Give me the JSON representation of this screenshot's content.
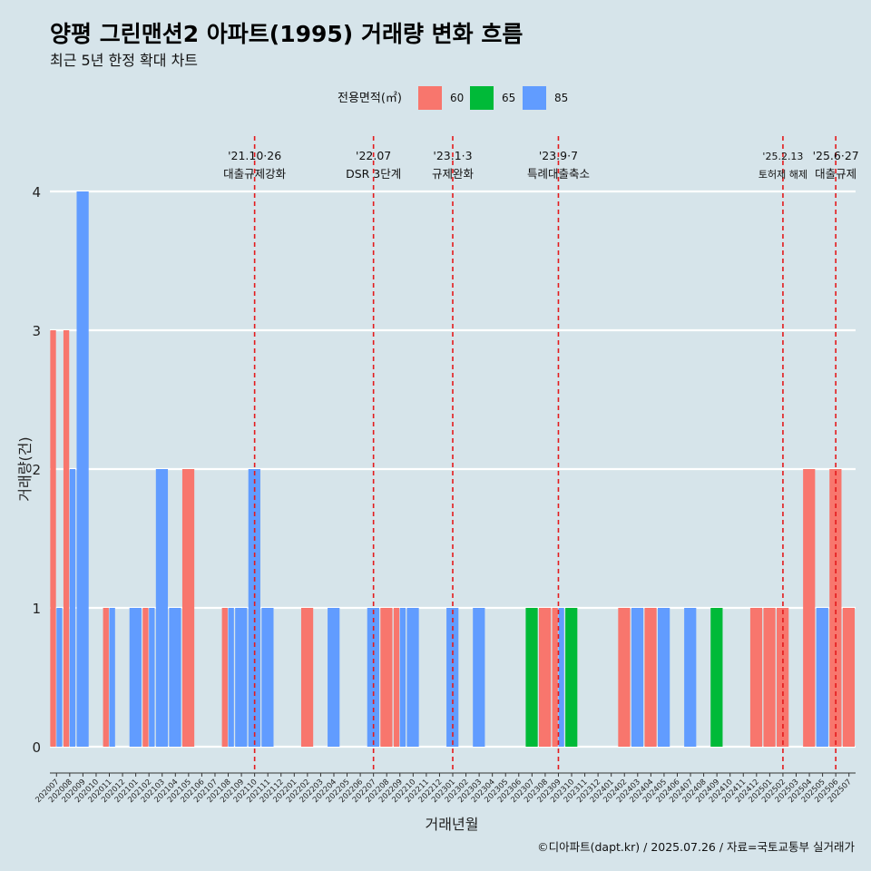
{
  "title": "양평 그린맨션2 아파트(1995) 거래량 변화 흐름",
  "subtitle": "최근 5년 한정 확대 차트",
  "footer": "©디아파트(dapt.kr) / 2025.07.26 / 자료=국토교통부 실거래가",
  "legend": {
    "title": "전용면적(㎡)",
    "items": [
      {
        "label": "60",
        "color": "#f8766d"
      },
      {
        "label": "65",
        "color": "#00ba38"
      },
      {
        "label": "85",
        "color": "#619cff"
      }
    ]
  },
  "chart_data": {
    "type": "bar",
    "xlabel": "거래년월",
    "ylabel": "거래량(건)",
    "ylim": [
      0,
      4
    ],
    "yticks": [
      0,
      1,
      2,
      3,
      4
    ],
    "grid": true,
    "legend_position": "top",
    "categories": [
      "202007",
      "202008",
      "202009",
      "202010",
      "202011",
      "202012",
      "202101",
      "202102",
      "202103",
      "202104",
      "202105",
      "202106",
      "202107",
      "202108",
      "202109",
      "202110",
      "202111",
      "202112",
      "202201",
      "202202",
      "202203",
      "202204",
      "202205",
      "202206",
      "202207",
      "202208",
      "202209",
      "202210",
      "202211",
      "202212",
      "202301",
      "202302",
      "202303",
      "202304",
      "202305",
      "202306",
      "202307",
      "202308",
      "202309",
      "202310",
      "202311",
      "202312",
      "202401",
      "202402",
      "202403",
      "202404",
      "202405",
      "202406",
      "202407",
      "202408",
      "202409",
      "202410",
      "202411",
      "202412",
      "202501",
      "202502",
      "202503",
      "202504",
      "202505",
      "202506",
      "202507"
    ],
    "series": [
      {
        "name": "60",
        "color": "#f8766d",
        "values": [
          3,
          3,
          0,
          0,
          1,
          0,
          0,
          1,
          0,
          0,
          2,
          0,
          0,
          1,
          0,
          0,
          0,
          0,
          0,
          1,
          0,
          0,
          0,
          0,
          0,
          1,
          1,
          0,
          0,
          0,
          0,
          0,
          0,
          0,
          0,
          0,
          0,
          1,
          1,
          0,
          0,
          0,
          0,
          1,
          0,
          1,
          0,
          0,
          0,
          0,
          0,
          0,
          0,
          1,
          1,
          1,
          0,
          2,
          0,
          2,
          1
        ]
      },
      {
        "name": "65",
        "color": "#00ba38",
        "values": [
          0,
          0,
          0,
          0,
          0,
          0,
          0,
          0,
          0,
          0,
          0,
          0,
          0,
          0,
          0,
          0,
          0,
          0,
          0,
          0,
          0,
          0,
          0,
          0,
          0,
          0,
          0,
          0,
          0,
          0,
          0,
          0,
          0,
          0,
          0,
          0,
          1,
          0,
          0,
          1,
          0,
          0,
          0,
          0,
          0,
          0,
          0,
          0,
          0,
          0,
          1,
          0,
          0,
          0,
          0,
          0,
          0,
          0,
          0,
          0,
          0
        ]
      },
      {
        "name": "85",
        "color": "#619cff",
        "values": [
          1,
          2,
          4,
          0,
          1,
          0,
          1,
          1,
          2,
          1,
          0,
          0,
          0,
          1,
          1,
          2,
          1,
          0,
          0,
          0,
          0,
          1,
          0,
          0,
          1,
          0,
          1,
          1,
          0,
          0,
          1,
          0,
          1,
          0,
          0,
          0,
          0,
          0,
          1,
          0,
          0,
          0,
          0,
          0,
          1,
          0,
          1,
          0,
          1,
          0,
          0,
          0,
          0,
          0,
          0,
          0,
          0,
          0,
          1,
          0,
          0
        ]
      }
    ],
    "annotations": [
      {
        "category": "202110",
        "line1": "'21.10·26",
        "line2": "대출규제강화"
      },
      {
        "category": "202207",
        "line1": "'22.07",
        "line2": "DSR 3단계"
      },
      {
        "category": "202301",
        "line1": "'23.1·3",
        "line2": "규제완화"
      },
      {
        "category": "202309",
        "line1": "'23.9·7",
        "line2": "특례대출축소"
      },
      {
        "category": "202502",
        "line1": "'25.2.13",
        "line2": "토허제 해제"
      },
      {
        "category": "202506",
        "line1": "'25.6·27",
        "line2": "대출규제"
      }
    ]
  }
}
